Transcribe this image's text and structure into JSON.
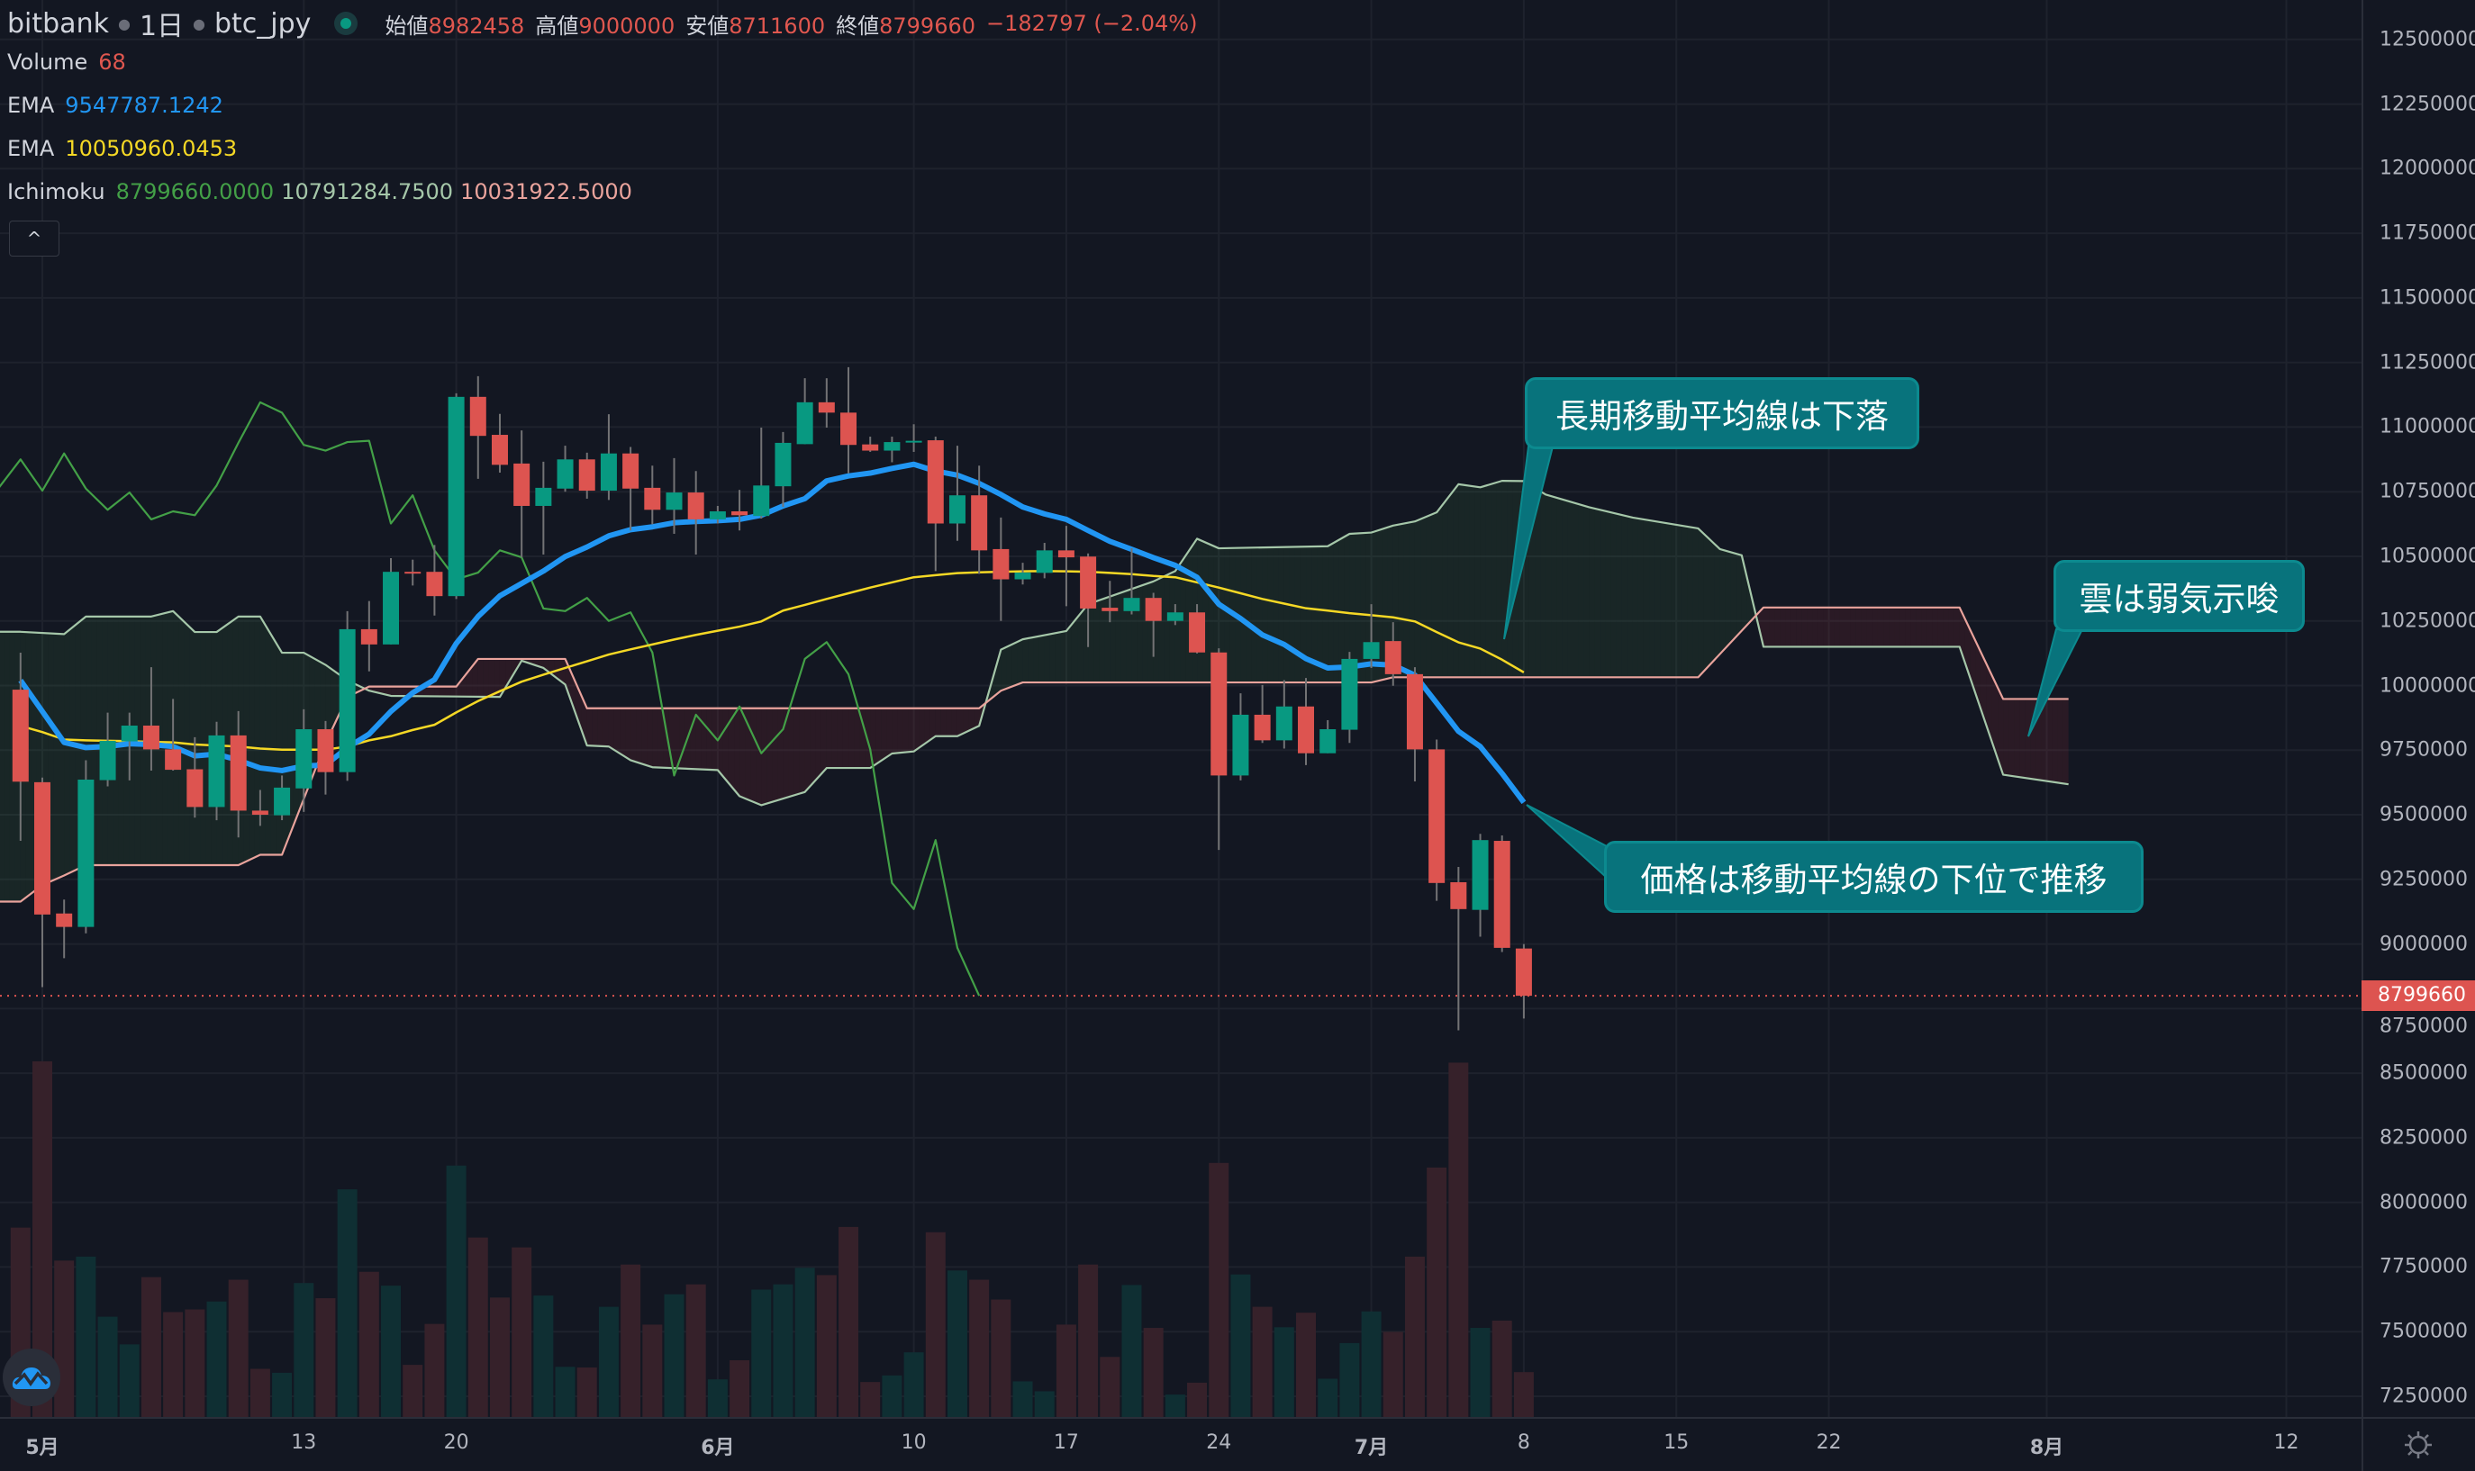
{
  "header": {
    "exchange": "bitbank",
    "interval": "1日",
    "symbol": "btc_jpy",
    "ohlc": [
      {
        "label": "始値",
        "value": "8982458"
      },
      {
        "label": "高値",
        "value": "9000000"
      },
      {
        "label": "安値",
        "value": "8711600"
      },
      {
        "label": "終値",
        "value": "8799660"
      }
    ],
    "change": "−182797 (−2.04%)"
  },
  "legends": {
    "volume": {
      "name": "Volume",
      "value": "68"
    },
    "ema_short": {
      "name": "EMA",
      "value": "9547787.1242"
    },
    "ema_long": {
      "name": "EMA",
      "value": "10050960.0453"
    },
    "ichimoku": {
      "name": "Ichimoku",
      "values": [
        "8799660.0000",
        "10791284.7500",
        "10031922.5000"
      ]
    }
  },
  "collapse_button": "^",
  "price_axis": {
    "labels": [
      "12500000",
      "12250000",
      "12000000",
      "11750000",
      "11500000",
      "11250000",
      "11000000",
      "10750000",
      "10500000",
      "10250000",
      "10000000",
      "9750000",
      "9500000",
      "9250000",
      "9000000",
      "8750000",
      "8500000",
      "8250000",
      "8000000",
      "7750000",
      "7500000",
      "7250000"
    ],
    "last_price": "8799660"
  },
  "time_axis": {
    "labels": [
      {
        "label": "5月",
        "date": "5/1"
      },
      {
        "label": "13",
        "date": "5/13"
      },
      {
        "label": "20",
        "date": "5/20"
      },
      {
        "label": "6月",
        "date": "6/1"
      },
      {
        "label": "10",
        "date": "6/10"
      },
      {
        "label": "17",
        "date": "6/17"
      },
      {
        "label": "24",
        "date": "6/24"
      },
      {
        "label": "7月",
        "date": "7/1"
      },
      {
        "label": "8",
        "date": "7/8"
      },
      {
        "label": "15",
        "date": "7/15"
      },
      {
        "label": "22",
        "date": "7/22"
      },
      {
        "label": "8月",
        "date": "8/1"
      },
      {
        "label": "12",
        "date": "8/12"
      }
    ]
  },
  "annotations": [
    {
      "text": "長期移動平均線は下落"
    },
    {
      "text": "雲は弱気示唆"
    },
    {
      "text": "価格は移動平均線の下位で推移"
    }
  ],
  "colors": {
    "background": "#131722",
    "up": "#089981",
    "down": "#dd5450",
    "wick": "#737375",
    "volume_up": "#0f2f33",
    "volume_down": "#36212a",
    "ema_short": "#2196f3",
    "ema_long": "#f5d825",
    "chikou": "#43a047",
    "span_a": "#a5c7a9",
    "span_b": "#e9a39c",
    "cloud_bull": "rgba(76,175,80,0.10)",
    "cloud_bear": "rgba(242,54,69,0.10)",
    "annotation": "#08737c"
  },
  "chart_data": {
    "type": "candlestick",
    "ylim": [
      7250000,
      12500000
    ],
    "grid": true,
    "candles_columns": [
      "date",
      "open",
      "high",
      "low",
      "close",
      "volume"
    ],
    "candles": [
      [
        "4/30",
        9984000,
        10127000,
        9399000,
        9628000,
        287
      ],
      [
        "5/1",
        9626000,
        9644000,
        8833000,
        9114000,
        539
      ],
      [
        "5/2",
        9118000,
        9172000,
        8945000,
        9066000,
        237
      ],
      [
        "5/3",
        9066000,
        9711000,
        9041000,
        9636000,
        243
      ],
      [
        "5/4",
        9634000,
        9895000,
        9610000,
        9786000,
        152
      ],
      [
        "5/5",
        9784000,
        9895000,
        9633000,
        9845000,
        110
      ],
      [
        "5/6",
        9845000,
        10071000,
        9671000,
        9753000,
        212
      ],
      [
        "5/7",
        9753000,
        9948000,
        9671000,
        9674000,
        159
      ],
      [
        "5/8",
        9676000,
        9800000,
        9489000,
        9530000,
        163
      ],
      [
        "5/9",
        9530000,
        9860000,
        9479000,
        9807000,
        175
      ],
      [
        "5/10",
        9807000,
        9901000,
        9412000,
        9516000,
        208
      ],
      [
        "5/11",
        9516000,
        9596000,
        9457000,
        9500000,
        73
      ],
      [
        "5/12",
        9498000,
        9652000,
        9479000,
        9605000,
        67
      ],
      [
        "5/13",
        9602000,
        9908000,
        9511000,
        9831000,
        203
      ],
      [
        "5/14",
        9831000,
        9863000,
        9578000,
        9665000,
        180
      ],
      [
        "5/15",
        9665000,
        10288000,
        9631000,
        10218000,
        345
      ],
      [
        "5/16",
        10218000,
        10327000,
        10055000,
        10159000,
        220
      ],
      [
        "5/17",
        10159000,
        10493000,
        10159000,
        10440000,
        199
      ],
      [
        "5/18",
        10440000,
        10487000,
        10387000,
        10437000,
        79
      ],
      [
        "5/19",
        10440000,
        10544000,
        10271000,
        10346000,
        141
      ],
      [
        "5/20",
        10346000,
        11131000,
        10335000,
        11117000,
        381
      ],
      [
        "5/21",
        11117000,
        11197000,
        10800000,
        10966000,
        272
      ],
      [
        "5/22",
        10970000,
        11051000,
        10824000,
        10854000,
        181
      ],
      [
        "5/23",
        10859000,
        10987000,
        10496000,
        10695000,
        257
      ],
      [
        "5/24",
        10695000,
        10866000,
        10507000,
        10765000,
        184
      ],
      [
        "5/25",
        10762000,
        10928000,
        10750000,
        10875000,
        76
      ],
      [
        "5/26",
        10875000,
        10901000,
        10723000,
        10754000,
        75
      ],
      [
        "5/27",
        10754000,
        11050000,
        10718000,
        10898000,
        167
      ],
      [
        "5/28",
        10898000,
        10923000,
        10600000,
        10762000,
        231
      ],
      [
        "5/29",
        10765000,
        10851000,
        10624000,
        10680000,
        140
      ],
      [
        "5/30",
        10680000,
        10880000,
        10587000,
        10747000,
        186
      ],
      [
        "5/31",
        10747000,
        10830000,
        10507000,
        10643000,
        201
      ],
      [
        "6/1",
        10643000,
        10695000,
        10627000,
        10674000,
        57
      ],
      [
        "6/2",
        10674000,
        10757000,
        10600000,
        10659000,
        86
      ],
      [
        "6/3",
        10656000,
        10998000,
        10646000,
        10774000,
        193
      ],
      [
        "6/4",
        10771000,
        10981000,
        10691000,
        10939000,
        201
      ],
      [
        "6/5",
        10934000,
        11189000,
        10934000,
        11096000,
        226
      ],
      [
        "6/6",
        11096000,
        11189000,
        10998000,
        11056000,
        215
      ],
      [
        "6/7",
        11056000,
        11232000,
        10821000,
        10931000,
        288
      ],
      [
        "6/8",
        10933000,
        10963000,
        10904000,
        10909000,
        53
      ],
      [
        "6/9",
        10909000,
        10963000,
        10864000,
        10942000,
        63
      ],
      [
        "6/10",
        10941000,
        11011000,
        10904000,
        10947000,
        98
      ],
      [
        "6/11",
        10949000,
        10963000,
        10443000,
        10627000,
        280
      ],
      [
        "6/12",
        10627000,
        10928000,
        10560000,
        10736000,
        222
      ],
      [
        "6/13",
        10736000,
        10851000,
        10432000,
        10523000,
        208
      ],
      [
        "6/14",
        10528000,
        10650000,
        10250000,
        10411000,
        178
      ],
      [
        "6/15",
        10411000,
        10475000,
        10391000,
        10437000,
        54
      ],
      [
        "6/16",
        10436000,
        10552000,
        10415000,
        10523000,
        39
      ],
      [
        "6/17",
        10523000,
        10618000,
        10307000,
        10496000,
        140
      ],
      [
        "6/18",
        10499000,
        10511000,
        10149000,
        10298000,
        231
      ],
      [
        "6/19",
        10301000,
        10405000,
        10245000,
        10288000,
        91
      ],
      [
        "6/20",
        10288000,
        10531000,
        10275000,
        10339000,
        200
      ],
      [
        "6/21",
        10339000,
        10359000,
        10111000,
        10250000,
        135
      ],
      [
        "6/22",
        10250000,
        10315000,
        10234000,
        10283000,
        34
      ],
      [
        "6/23",
        10283000,
        10315000,
        10124000,
        10128000,
        52
      ],
      [
        "6/24",
        10128000,
        10144000,
        9364000,
        9652000,
        385
      ],
      [
        "6/25",
        9652000,
        9970000,
        9633000,
        9887000,
        216
      ],
      [
        "6/26",
        9887000,
        10002000,
        9778000,
        9788000,
        167
      ],
      [
        "6/27",
        9788000,
        10021000,
        9756000,
        9919000,
        136
      ],
      [
        "6/28",
        9919000,
        10029000,
        9692000,
        9738000,
        158
      ],
      [
        "6/29",
        9738000,
        9866000,
        9738000,
        9831000,
        58
      ],
      [
        "6/30",
        9829000,
        10130000,
        9778000,
        10103000,
        112
      ],
      [
        "7/1",
        10103000,
        10315000,
        10068000,
        10168000,
        160
      ],
      [
        "7/2",
        10172000,
        10245000,
        9999000,
        10044000,
        129
      ],
      [
        "7/3",
        10044000,
        10071000,
        9629000,
        9753000,
        243
      ],
      [
        "7/4",
        9753000,
        9791000,
        9167000,
        9236000,
        378
      ],
      [
        "7/5",
        9239000,
        9298000,
        8666000,
        9135000,
        537
      ],
      [
        "7/6",
        9132000,
        9426000,
        9028000,
        9402000,
        135
      ],
      [
        "7/7",
        9399000,
        9420000,
        8969000,
        8985000,
        146
      ],
      [
        "7/8",
        8982458,
        9000000,
        8711600,
        8799660,
        68
      ]
    ],
    "ema_short": [
      10020000,
      9900000,
      9780000,
      9760000,
      9764000,
      9775000,
      9772000,
      9764000,
      9728000,
      9735000,
      9711000,
      9681000,
      9671000,
      9689000,
      9692000,
      9760000,
      9812000,
      9900000,
      9972000,
      10023000,
      10163000,
      10267000,
      10347000,
      10395000,
      10443000,
      10499000,
      10536000,
      10579000,
      10603000,
      10614000,
      10630000,
      10635000,
      10638000,
      10643000,
      10659000,
      10695000,
      10723000,
      10792000,
      10811000,
      10822000,
      10840000,
      10856000,
      10830000,
      10814000,
      10782000,
      10739000,
      10691000,
      10664000,
      10643000,
      10600000,
      10558000,
      10527000,
      10495000,
      10465000,
      10419000,
      10315000,
      10259000,
      10196000,
      10159000,
      10104000,
      10068000,
      10072000,
      10084000,
      10079000,
      10040000,
      9932000,
      9823000,
      9764000,
      9660000,
      9547787
    ],
    "ema_long": [
      9844000,
      9820000,
      9791000,
      9788000,
      9786000,
      9785000,
      9782000,
      9780000,
      9772000,
      9768000,
      9764000,
      9756000,
      9752000,
      9752000,
      9752000,
      9764000,
      9788000,
      9804000,
      9828000,
      9848000,
      9896000,
      9940000,
      9978000,
      10015000,
      10042000,
      10068000,
      10094000,
      10120000,
      10140000,
      10159000,
      10178000,
      10196000,
      10212000,
      10228000,
      10248000,
      10290000,
      10312000,
      10335000,
      10357000,
      10379000,
      10399000,
      10419000,
      10427000,
      10435000,
      10438000,
      10440000,
      10442000,
      10443000,
      10442000,
      10440000,
      10436000,
      10431000,
      10424000,
      10419000,
      10399000,
      10379000,
      10357000,
      10335000,
      10317000,
      10299000,
      10290000,
      10280000,
      10272000,
      10264000,
      10248000,
      10207000,
      10167000,
      10143000,
      10100000,
      10050960
    ],
    "ichimoku": {
      "chikou_displacement_bars": 25,
      "span_a": [
        [
          "4/30",
          10208000
        ],
        [
          "5/2",
          10199000
        ],
        [
          "5/3",
          10267000
        ],
        [
          "5/6",
          10267000
        ],
        [
          "5/7",
          10288000
        ],
        [
          "5/8",
          10207000
        ],
        [
          "5/9",
          10207000
        ],
        [
          "5/10",
          10267000
        ],
        [
          "5/11",
          10267000
        ],
        [
          "5/12",
          10127000
        ],
        [
          "5/13",
          10127000
        ],
        [
          "5/14",
          10080000
        ],
        [
          "5/15",
          10020000
        ],
        [
          "5/16",
          9980000
        ],
        [
          "5/17",
          9960000
        ],
        [
          "5/22",
          9956000
        ],
        [
          "5/23",
          10096000
        ],
        [
          "5/24",
          10068000
        ],
        [
          "5/25",
          10004000
        ],
        [
          "5/26",
          9768000
        ],
        [
          "5/27",
          9764000
        ],
        [
          "5/28",
          9711000
        ],
        [
          "5/29",
          9684000
        ],
        [
          "6/1",
          9673000
        ],
        [
          "6/2",
          9572000
        ],
        [
          "6/3",
          9537000
        ],
        [
          "6/5",
          9588000
        ],
        [
          "6/6",
          9681000
        ],
        [
          "6/8",
          9681000
        ],
        [
          "6/9",
          9737000
        ],
        [
          "6/10",
          9745000
        ],
        [
          "6/11",
          9804000
        ],
        [
          "6/12",
          9804000
        ],
        [
          "6/13",
          9844000
        ],
        [
          "6/14",
          10139000
        ],
        [
          "6/15",
          10179000
        ],
        [
          "6/17",
          10211000
        ],
        [
          "6/18",
          10315000
        ],
        [
          "6/21",
          10403000
        ],
        [
          "6/22",
          10443000
        ],
        [
          "6/23",
          10568000
        ],
        [
          "6/24",
          10531000
        ],
        [
          "6/29",
          10539000
        ],
        [
          "6/30",
          10587000
        ],
        [
          "7/1",
          10592000
        ],
        [
          "7/2",
          10619000
        ],
        [
          "7/3",
          10635000
        ],
        [
          "7/4",
          10670000
        ],
        [
          "7/5",
          10779000
        ],
        [
          "7/6",
          10767000
        ],
        [
          "7/7",
          10792000
        ],
        [
          "7/8",
          10791285
        ],
        [
          "7/9",
          10739000
        ],
        [
          "7/11",
          10690000
        ],
        [
          "7/13",
          10650000
        ],
        [
          "7/16",
          10608000
        ],
        [
          "7/17",
          10528000
        ],
        [
          "7/18",
          10504000
        ],
        [
          "7/19",
          10150000
        ],
        [
          "7/28",
          10150000
        ],
        [
          "7/30",
          9655000
        ],
        [
          "8/2",
          9618000
        ]
      ],
      "span_b": [
        [
          "4/30",
          9164000
        ],
        [
          "5/1",
          9228000
        ],
        [
          "5/2",
          9265000
        ],
        [
          "5/3",
          9305000
        ],
        [
          "5/10",
          9305000
        ],
        [
          "5/11",
          9345000
        ],
        [
          "5/12",
          9345000
        ],
        [
          "5/13",
          9561000
        ],
        [
          "5/14",
          9777000
        ],
        [
          "5/15",
          9956000
        ],
        [
          "5/16",
          9996000
        ],
        [
          "5/20",
          9996000
        ],
        [
          "5/21",
          10103000
        ],
        [
          "5/25",
          10103000
        ],
        [
          "5/26",
          9912000
        ],
        [
          "6/13",
          9912000
        ],
        [
          "6/14",
          9980000
        ],
        [
          "6/15",
          10012000
        ],
        [
          "7/1",
          10012000
        ],
        [
          "7/2",
          10031923
        ],
        [
          "7/16",
          10031923
        ],
        [
          "7/19",
          10302000
        ],
        [
          "7/28",
          10302000
        ],
        [
          "7/30",
          9948000
        ],
        [
          "8/2",
          9948000
        ]
      ]
    }
  }
}
